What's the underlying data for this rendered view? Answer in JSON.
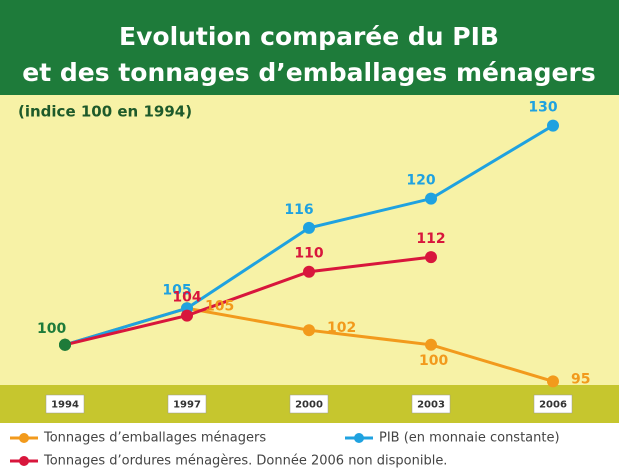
{
  "chart_data": {
    "type": "line",
    "title": "Evolution comparée du PIB",
    "subtitle": "et des tonnages d’emballages ménagers",
    "annotation": "(indice 100 en 1994)",
    "categories": [
      "1994",
      "1997",
      "2000",
      "2003",
      "2006"
    ],
    "ylim": [
      94.5,
      133.5
    ],
    "start_color": "#1e7b3a",
    "series": [
      {
        "name": "Tonnages d’emballages ménagers",
        "color": "#f29a1c",
        "values": [
          100,
          105,
          102,
          100,
          95
        ]
      },
      {
        "name": "PIB (en monnaie constante)",
        "color": "#1fa2e0",
        "values": [
          100,
          105,
          116,
          120,
          130
        ]
      },
      {
        "name": "Tonnages d’ordures ménagères. Donnée 2006 non disponible.",
        "color": "#d8163c",
        "values": [
          100,
          104,
          110,
          112,
          null
        ]
      }
    ]
  }
}
